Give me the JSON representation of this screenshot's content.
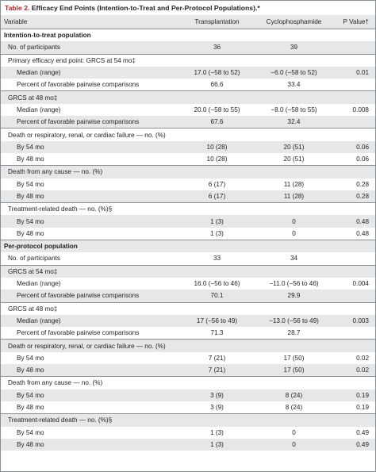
{
  "caption": {
    "table_number": "Table 2.",
    "title": "Efficacy End Points (Intention-to-Treat and Per-Protocol Populations).*"
  },
  "colors": {
    "caption_accent": "#b12a2a",
    "row_shade": "#e6e7e8",
    "rule": "#8a8f93"
  },
  "columns": [
    "Variable",
    "Transplantation",
    "Cyclophosphamide",
    "P Value†"
  ],
  "rows": [
    {
      "type": "section",
      "label": "Intention-to-treat population",
      "group": true
    },
    {
      "label": "No. of participants",
      "indent": 1,
      "trans": "36",
      "cyclo": "39",
      "p": ""
    },
    {
      "label": "Primary efficacy end point: GRCS at 54 mo‡",
      "indent": 1,
      "group": true
    },
    {
      "label": "Median (range)",
      "indent": 2,
      "trans": "17.0 (−58 to 52)",
      "cyclo": "−6.0 (−58 to 52)",
      "p": "0.01"
    },
    {
      "label": "Percent of favorable pairwise comparisons",
      "indent": 2,
      "trans": "66.6",
      "cyclo": "33.4",
      "p": ""
    },
    {
      "label": "GRCS at 48 mo‡",
      "indent": 1,
      "group": true
    },
    {
      "label": "Median (range)",
      "indent": 2,
      "trans": "20.0 (−58 to 55)",
      "cyclo": "−8.0 (−58 to 55)",
      "p": "0.008"
    },
    {
      "label": "Percent of favorable pairwise comparisons",
      "indent": 2,
      "trans": "67.6",
      "cyclo": "32.4",
      "p": ""
    },
    {
      "label": "Death or respiratory, renal, or cardiac failure — no. (%)",
      "indent": 1,
      "group": true
    },
    {
      "label": "By 54 mo",
      "indent": 2,
      "trans": "10 (28)",
      "cyclo": "20 (51)",
      "p": "0.06"
    },
    {
      "label": "By 48 mo",
      "indent": 2,
      "trans": "10 (28)",
      "cyclo": "20 (51)",
      "p": "0.06"
    },
    {
      "label": "Death from any cause — no. (%)",
      "indent": 1,
      "group": true
    },
    {
      "label": "By 54 mo",
      "indent": 2,
      "trans": "6 (17)",
      "cyclo": "11 (28)",
      "p": "0.28"
    },
    {
      "label": "By 48 mo",
      "indent": 2,
      "trans": "6 (17)",
      "cyclo": "11 (28)",
      "p": "0.28"
    },
    {
      "label": "Treatment-related death — no. (%)§",
      "indent": 1,
      "group": true
    },
    {
      "label": "By 54 mo",
      "indent": 2,
      "trans": "1 (3)",
      "cyclo": "0",
      "p": "0.48"
    },
    {
      "label": "By 48 mo",
      "indent": 2,
      "trans": "1 (3)",
      "cyclo": "0",
      "p": "0.48"
    },
    {
      "type": "section",
      "label": "Per-protocol population",
      "group": true
    },
    {
      "label": "No. of participants",
      "indent": 1,
      "trans": "33",
      "cyclo": "34",
      "p": ""
    },
    {
      "label": "GRCS at 54 mo‡",
      "indent": 1,
      "group": true
    },
    {
      "label": "Median (range)",
      "indent": 2,
      "trans": "16.0 (−56 to 46)",
      "cyclo": "−11.0 (−56 to 46)",
      "p": "0.004"
    },
    {
      "label": "Percent of favorable pairwise comparisons",
      "indent": 2,
      "trans": "70.1",
      "cyclo": "29.9",
      "p": ""
    },
    {
      "label": "GRCS at 48 mo‡",
      "indent": 1,
      "group": true
    },
    {
      "label": "Median (range)",
      "indent": 2,
      "trans": "17 (−56 to 49)",
      "cyclo": "−13.0 (−56 to 49)",
      "p": "0.003"
    },
    {
      "label": "Percent of favorable pairwise comparisons",
      "indent": 2,
      "trans": "71.3",
      "cyclo": "28.7",
      "p": ""
    },
    {
      "label": "Death or respiratory, renal, or cardiac failure — no. (%)",
      "indent": 1,
      "group": true
    },
    {
      "label": "By 54 mo",
      "indent": 2,
      "trans": "7 (21)",
      "cyclo": "17 (50)",
      "p": "0.02"
    },
    {
      "label": "By 48 mo",
      "indent": 2,
      "trans": "7 (21)",
      "cyclo": "17 (50)",
      "p": "0.02"
    },
    {
      "label": "Death from any cause — no. (%)",
      "indent": 1,
      "group": true
    },
    {
      "label": "By 54 mo",
      "indent": 2,
      "trans": "3 (9)",
      "cyclo": "8 (24)",
      "p": "0.19"
    },
    {
      "label": "By 48 mo",
      "indent": 2,
      "trans": "3 (9)",
      "cyclo": "8 (24)",
      "p": "0.19"
    },
    {
      "label": "Treatment-related death — no. (%)§",
      "indent": 1,
      "group": true
    },
    {
      "label": "By 54 mo",
      "indent": 2,
      "trans": "1 (3)",
      "cyclo": "0",
      "p": "0.49"
    },
    {
      "label": "By 48 mo",
      "indent": 2,
      "trans": "1 (3)",
      "cyclo": "0",
      "p": "0.49"
    }
  ]
}
